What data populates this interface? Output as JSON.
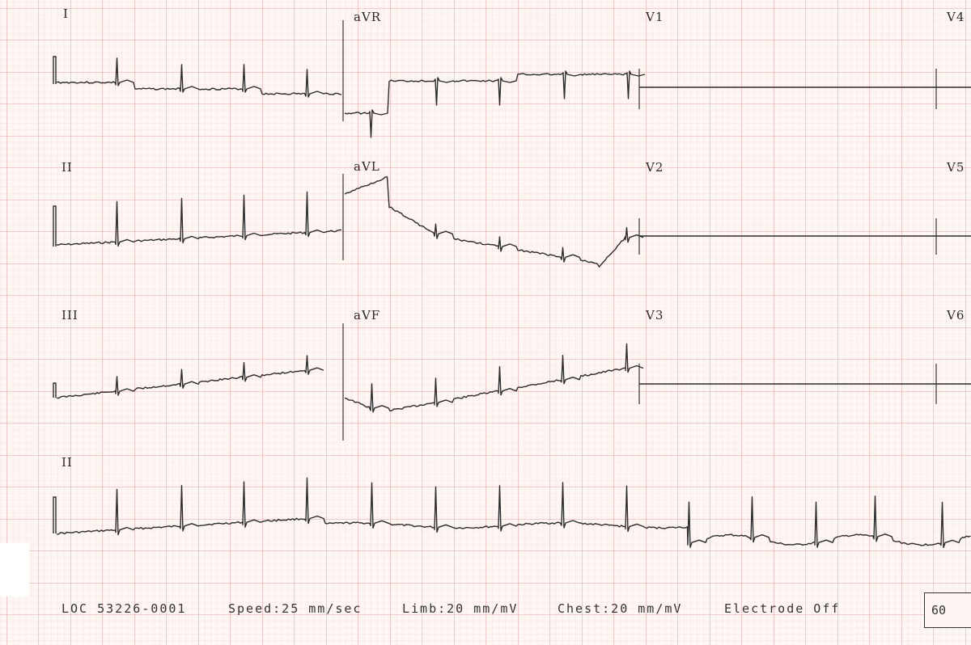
{
  "leads": {
    "I": "I",
    "aVR": "aVR",
    "V1": "V1",
    "V4": "V4",
    "II": "II",
    "aVL": "aVL",
    "V2": "V2",
    "V5": "V5",
    "III": "III",
    "aVF": "aVF",
    "V3": "V3",
    "V6": "V6",
    "rhythm": "II"
  },
  "footer": {
    "loc": "LOC 53226-0001",
    "speed": "Speed:25 mm/sec",
    "limb": "Limb:20 mm/mV",
    "chest": "Chest:20 mm/mV",
    "status": "Electrode Off",
    "rate": "60"
  },
  "colors": {
    "paper": "#fdf6f3",
    "grid_major": "#e6a3a3",
    "grid_minor": "#f3d4d4",
    "trace": "#2b2b2b"
  }
}
